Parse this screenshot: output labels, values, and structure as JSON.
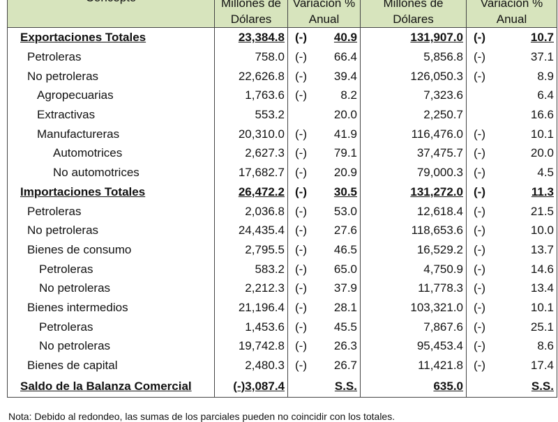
{
  "headers": {
    "concept": "Concepto",
    "value1": "Millones de Dólares",
    "var1": "Variación % Anual",
    "value2": "Millones de Dólares",
    "var2": "Variación % Anual"
  },
  "rows": [
    {
      "label": "Exportaciones Totales",
      "level": 0,
      "bold": true,
      "v1": "23,384.8",
      "s1": "(-)",
      "r1": "40.9",
      "v2": "131,907.0",
      "s2": "(-)",
      "r2": "10.7"
    },
    {
      "label": "Petroleras",
      "level": 1,
      "bold": false,
      "v1": "758.0",
      "s1": "(-)",
      "r1": "66.4",
      "v2": "5,856.8",
      "s2": "(-)",
      "r2": "37.1"
    },
    {
      "label": "No petroleras",
      "level": 1,
      "bold": false,
      "v1": "22,626.8",
      "s1": "(-)",
      "r1": "39.4",
      "v2": "126,050.3",
      "s2": "(-)",
      "r2": "8.9"
    },
    {
      "label": "Agropecuarias",
      "level": 2,
      "bold": false,
      "v1": "1,763.6",
      "s1": "(-)",
      "r1": "8.2",
      "v2": "7,323.6",
      "s2": "",
      "r2": "6.4"
    },
    {
      "label": "Extractivas",
      "level": 2,
      "bold": false,
      "v1": "553.2",
      "s1": "",
      "r1": "20.0",
      "v2": "2,250.7",
      "s2": "",
      "r2": "16.6"
    },
    {
      "label": "Manufactureras",
      "level": 2,
      "bold": false,
      "v1": "20,310.0",
      "s1": "(-)",
      "r1": "41.9",
      "v2": "116,476.0",
      "s2": "(-)",
      "r2": "10.1"
    },
    {
      "label": "Automotrices",
      "level": 3,
      "bold": false,
      "v1": "2,627.3",
      "s1": "(-)",
      "r1": "79.1",
      "v2": "37,475.7",
      "s2": "(-)",
      "r2": "20.0"
    },
    {
      "label": "No automotrices",
      "level": 3,
      "bold": false,
      "v1": "17,682.7",
      "s1": "(-)",
      "r1": "20.9",
      "v2": "79,000.3",
      "s2": "(-)",
      "r2": "4.5"
    },
    {
      "label": "Importaciones Totales",
      "level": 0,
      "bold": true,
      "v1": "26,472.2",
      "s1": "(-)",
      "r1": "30.5",
      "v2": "131,272.0",
      "s2": "(-)",
      "r2": "11.3"
    },
    {
      "label": "Petroleras",
      "level": 1,
      "bold": false,
      "v1": "2,036.8",
      "s1": "(-)",
      "r1": "53.0",
      "v2": "12,618.4",
      "s2": "(-)",
      "r2": "21.5"
    },
    {
      "label": "No petroleras",
      "level": 1,
      "bold": false,
      "v1": "24,435.4",
      "s1": "(-)",
      "r1": "27.6",
      "v2": "118,653.6",
      "s2": "(-)",
      "r2": "10.0"
    },
    {
      "label": "Bienes de consumo",
      "level": 1,
      "bold": false,
      "v1": "2,795.5",
      "s1": "(-)",
      "r1": "46.5",
      "v2": "16,529.2",
      "s2": "(-)",
      "r2": "13.7"
    },
    {
      "label": "Petroleras",
      "level": 4,
      "bold": false,
      "v1": "583.2",
      "s1": "(-)",
      "r1": "65.0",
      "v2": "4,750.9",
      "s2": "(-)",
      "r2": "14.6"
    },
    {
      "label": "No petroleras",
      "level": 4,
      "bold": false,
      "v1": "2,212.3",
      "s1": "(-)",
      "r1": "37.9",
      "v2": "11,778.3",
      "s2": "(-)",
      "r2": "13.4"
    },
    {
      "label": "Bienes intermedios",
      "level": 1,
      "bold": false,
      "v1": "21,196.4",
      "s1": "(-)",
      "r1": "28.1",
      "v2": "103,321.0",
      "s2": "(-)",
      "r2": "10.1"
    },
    {
      "label": "Petroleras",
      "level": 4,
      "bold": false,
      "v1": "1,453.6",
      "s1": "(-)",
      "r1": "45.5",
      "v2": "7,867.6",
      "s2": "(-)",
      "r2": "25.1"
    },
    {
      "label": "No petroleras",
      "level": 4,
      "bold": false,
      "v1": "19,742.8",
      "s1": "(-)",
      "r1": "26.3",
      "v2": "95,453.4",
      "s2": "(-)",
      "r2": "8.6"
    },
    {
      "label": "Bienes de capital",
      "level": 1,
      "bold": false,
      "v1": "2,480.3",
      "s1": "(-)",
      "r1": "26.7",
      "v2": "11,421.8",
      "s2": "(-)",
      "r2": "17.4"
    },
    {
      "label": "Saldo de la Balanza Comercial",
      "level": 0,
      "bold": true,
      "v1": "(-)3,087.4",
      "s1": "",
      "r1": "S.S.",
      "v2": "635.0",
      "s2": "",
      "r2": "S.S."
    }
  ],
  "note": "Nota: Debido al redondeo, las sumas de los parciales pueden no coincidir con los totales."
}
